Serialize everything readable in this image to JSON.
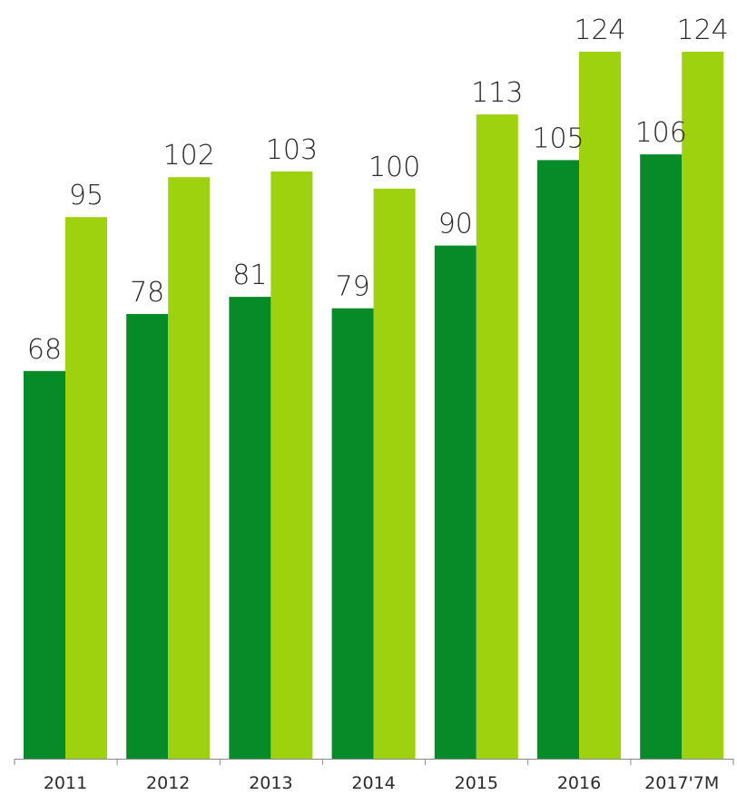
{
  "chart_data": {
    "type": "bar",
    "title": "",
    "xlabel": "",
    "ylabel": "",
    "categories": [
      "2011",
      "2012",
      "2013",
      "2014",
      "2015",
      "2016",
      "2017'7M"
    ],
    "series": [
      {
        "values": [
          68,
          78,
          81,
          79,
          90,
          105,
          106
        ],
        "color": "#078a28"
      },
      {
        "values": [
          95,
          102,
          103,
          100,
          113,
          124,
          124
        ],
        "color": "#9ed20f"
      }
    ],
    "ylim": [
      0,
      124
    ],
    "grid": false,
    "legend": "none",
    "data_labels": true,
    "axis_color": "#8a8a8a"
  }
}
